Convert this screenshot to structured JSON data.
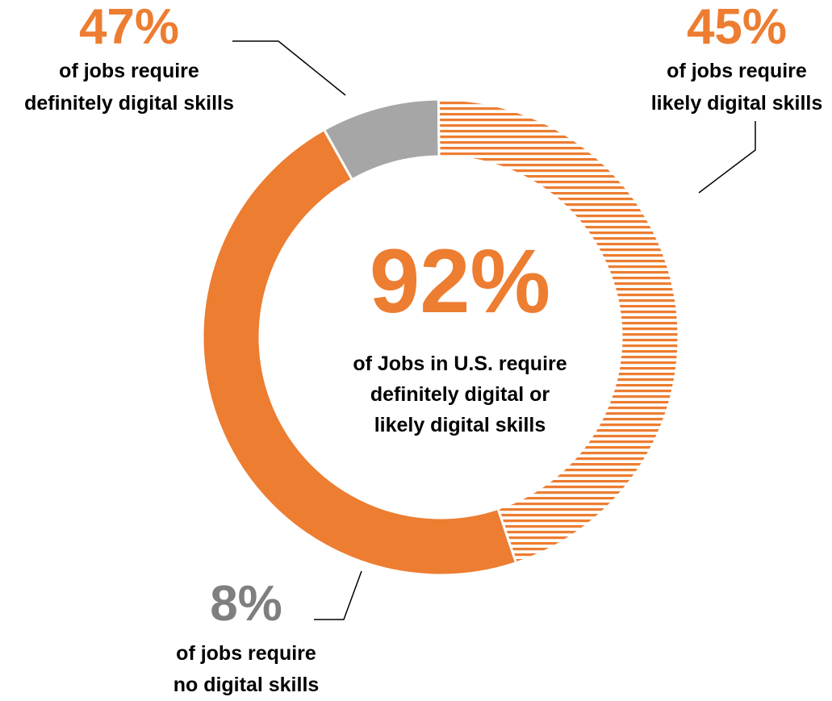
{
  "chart_data": {
    "type": "pie",
    "variant": "donut",
    "categories": [
      "definitely digital skills",
      "likely digital skills",
      "no digital skills"
    ],
    "values": [
      47,
      45,
      8
    ],
    "unit": "%",
    "colors": [
      "#ED7D31",
      "#ED7D31",
      "#A6A6A6"
    ],
    "patterns": [
      "solid",
      "horizontal-stripes",
      "solid"
    ],
    "slices": [
      {
        "value_label": "47%",
        "caption_lines": [
          "of jobs require",
          "definitely digital skills"
        ],
        "color": "#ED7D31",
        "label_color": "#ED7D31"
      },
      {
        "value_label": "45%",
        "caption_lines": [
          "of jobs require",
          "likely digital skills"
        ],
        "color": "#ED7D31",
        "label_color": "#ED7D31"
      },
      {
        "value_label": "8%",
        "caption_lines": [
          "of jobs require",
          "no digital skills"
        ],
        "color": "#A6A6A6",
        "label_color": "#7F7F7F"
      }
    ],
    "center": {
      "value_label": "92%",
      "caption_lines": [
        "of Jobs in U.S. require",
        "definitely digital or",
        "likely digital skills"
      ],
      "color": "#ED7D31"
    },
    "text_color": "#000000"
  }
}
